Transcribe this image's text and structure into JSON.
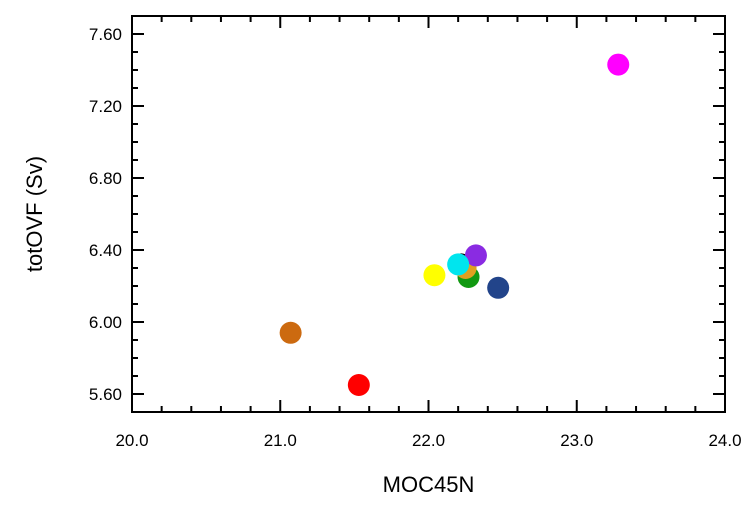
{
  "chart_data": {
    "type": "scatter",
    "title": "",
    "xlabel": "MOC45N",
    "ylabel": "totOVF (Sv)",
    "xlim": [
      20.0,
      24.0
    ],
    "ylim": [
      5.5,
      7.7
    ],
    "xticks": [
      20.0,
      21.0,
      22.0,
      23.0,
      24.0
    ],
    "xtick_labels": [
      "20.0",
      "21.0",
      "22.0",
      "23.0",
      "24.0"
    ],
    "yticks": [
      5.6,
      6.0,
      6.4,
      6.8,
      7.2,
      7.6
    ],
    "ytick_labels": [
      "5.60",
      "6.00",
      "6.40",
      "6.80",
      "7.20",
      "7.60"
    ],
    "grid": false,
    "points": [
      {
        "x": 21.07,
        "y": 5.94,
        "color": "#cc6a10"
      },
      {
        "x": 21.53,
        "y": 5.65,
        "color": "#ff0000"
      },
      {
        "x": 22.04,
        "y": 6.26,
        "color": "#ffff00"
      },
      {
        "x": 22.22,
        "y": 6.32,
        "color": "#000000"
      },
      {
        "x": 22.27,
        "y": 6.25,
        "color": "#119911"
      },
      {
        "x": 22.25,
        "y": 6.3,
        "color": "#e0a020"
      },
      {
        "x": 22.32,
        "y": 6.37,
        "color": "#8a2be2"
      },
      {
        "x": 22.47,
        "y": 6.19,
        "color": "#22448a"
      },
      {
        "x": 22.2,
        "y": 6.32,
        "color": "#00e5ee"
      },
      {
        "x": 23.28,
        "y": 7.43,
        "color": "#ff00ff"
      }
    ]
  }
}
